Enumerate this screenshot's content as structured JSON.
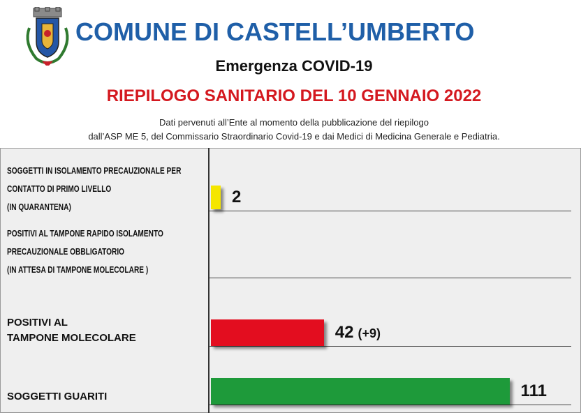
{
  "header": {
    "title": "COMUNE DI CASTELL’UMBERTO",
    "subtitle": "Emergenza COVID-19",
    "headline": "RIEPILOGO SANITARIO DEL 10 GENNAIO 2022",
    "note_line1": "Dati pervenuti all’Ente al momento della pubblicazione del riepilogo",
    "note_line2": "dall’ASP ME 5, del Commissario Straordinario Covid-19 e dai Medici di Medicina Generale e Pediatria."
  },
  "colors": {
    "title": "#1f5fa8",
    "headline": "#d4181f",
    "panel": "#efefef"
  },
  "icons": {
    "crest": "municipal-crest-icon"
  },
  "chart_data": {
    "type": "bar",
    "orientation": "horizontal",
    "xlim": [
      0,
      135
    ],
    "categories": [
      "SOGGETTI IN ISOLAMENTO PRECAUZIONALE PER\nCONTATTO DI PRIMO LIVELLO\n(IN QUARANTENA)",
      "POSITIVI AL TAMPONE RAPIDO ISOLAMENTO\n PRECAUZIONALE OBBLIGATORIO\n(IN ATTESA DI TAMPONE MOLECOLARE )",
      "POSITIVI AL\nTAMPONE MOLECOLARE",
      "SOGGETTI GUARITI"
    ],
    "values": [
      2,
      null,
      42,
      111
    ],
    "value_labels": [
      "2",
      "",
      "42",
      "111"
    ],
    "delta_labels": [
      "",
      "",
      "(+9)",
      ""
    ],
    "bar_colors": [
      "#f5e600",
      "#cccccc",
      "#e30d1f",
      "#1e9a3a"
    ],
    "grid": false,
    "legend": "none"
  }
}
